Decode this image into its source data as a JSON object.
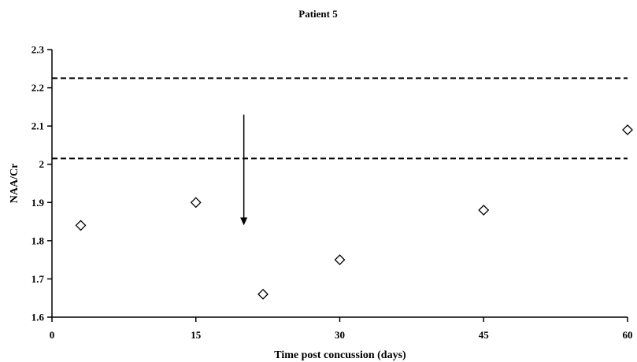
{
  "chart_data": {
    "type": "scatter",
    "title": "Patient 5",
    "xlabel": "Time post concussion (days)",
    "ylabel": "NAA/Cr",
    "xlim": [
      0,
      60
    ],
    "ylim": [
      1.6,
      2.3
    ],
    "xticks": [
      0,
      15,
      30,
      45,
      60
    ],
    "xtick_labels": [
      "0",
      "15",
      "30",
      "45",
      "60"
    ],
    "yticks": [
      1.6,
      1.7,
      1.8,
      1.9,
      2.0,
      2.1,
      2.2,
      2.3
    ],
    "ytick_labels": [
      "1.6",
      "1.7",
      "1.8",
      "1.9",
      "2",
      "2.1",
      "2.2",
      "2.3"
    ],
    "series": [
      {
        "marker": "open-diamond",
        "x": [
          3,
          15,
          22,
          30,
          45,
          60
        ],
        "y": [
          1.84,
          1.9,
          1.66,
          1.75,
          1.88,
          2.09
        ]
      }
    ],
    "reference_lines": [
      {
        "orientation": "horizontal",
        "y": 2.225,
        "style": "dashed"
      },
      {
        "orientation": "horizontal",
        "y": 2.015,
        "style": "dashed"
      }
    ],
    "annotations": [
      {
        "type": "arrow",
        "x": 20,
        "y_from": 2.13,
        "y_to": 1.84
      }
    ],
    "grid": false,
    "colors": {
      "axis": "#000000",
      "marker_stroke": "#000000",
      "marker_fill": "#ffffff",
      "reference_line": "#000000"
    }
  }
}
